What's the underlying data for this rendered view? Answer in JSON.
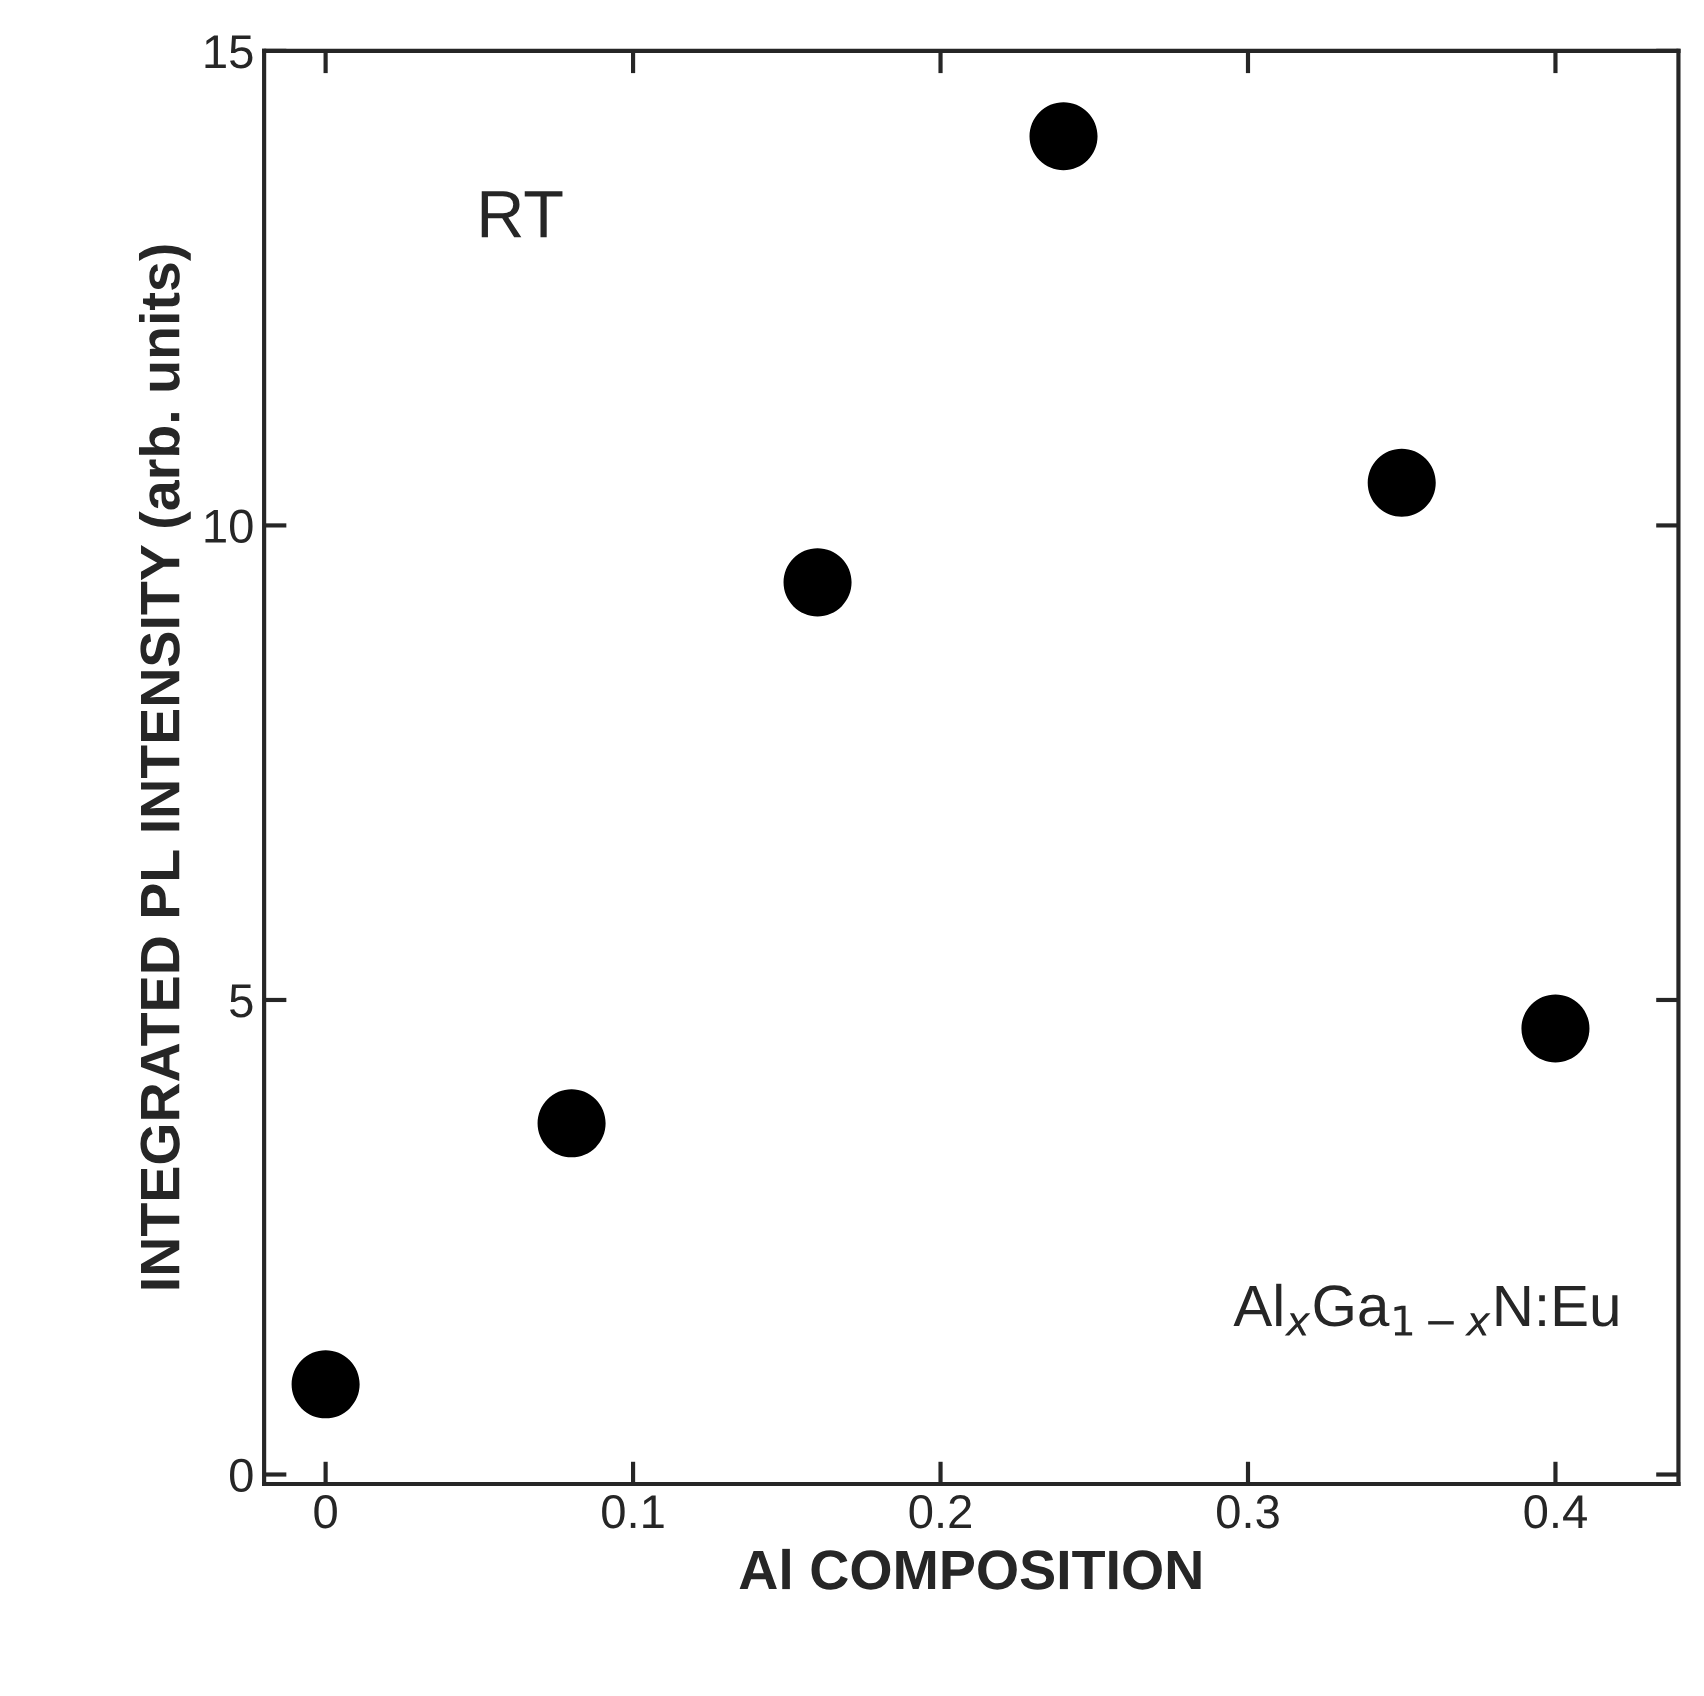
{
  "chart_data": {
    "type": "scatter",
    "xlabel": "Al COMPOSITION",
    "ylabel": "INTEGRATED PL INTENSITY (arb. units)",
    "x": [
      0,
      0.08,
      0.16,
      0.24,
      0.35,
      0.4
    ],
    "series": [
      {
        "color": "#000000",
        "values": [
          0.95,
          3.7,
          9.4,
          14.1,
          10.45,
          4.7
        ]
      }
    ],
    "marker": "circle",
    "xlim": [
      -0.02,
      0.44
    ],
    "xticks": [
      0,
      0.1,
      0.2,
      0.3,
      0.4
    ],
    "ylim": [
      -0.1,
      15
    ],
    "yticks": [
      0,
      5,
      10,
      15
    ],
    "grid": false,
    "legend": false,
    "annotations": [
      "RT",
      "Al$_{x}$Ga$_{1−x}$N:Eu"
    ]
  }
}
